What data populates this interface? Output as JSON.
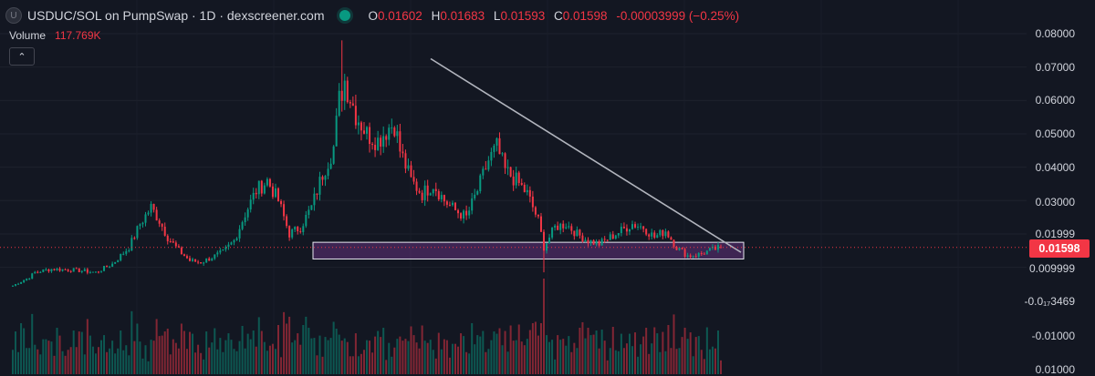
{
  "header": {
    "symbol_icon": "U",
    "title": "USDUC/SOL on PumpSwap · 1D · dexscreener.com",
    "status_color": "#089981",
    "ohlc": [
      {
        "k": "O",
        "v": "0.01602"
      },
      {
        "k": "H",
        "v": "0.01683"
      },
      {
        "k": "L",
        "v": "0.01593"
      },
      {
        "k": "C",
        "v": "0.01598"
      },
      {
        "k": "",
        "v": "-0.00003999 (−0.25%)"
      }
    ]
  },
  "volume": {
    "label": "Volume",
    "value": "117.769K"
  },
  "collapse_icon": "chevron-up-icon",
  "price_axis": {
    "ticks": [
      "0.08000",
      "0.07000",
      "0.06000",
      "0.05000",
      "0.04000",
      "0.03000",
      "0.01999",
      "0.009999",
      "-0.0₁₇3469",
      "-0.01000",
      "0.01000"
    ],
    "last_price": "0.01598"
  },
  "colors": {
    "up": "#089981",
    "down": "#f23645",
    "background": "#131722",
    "zone": "#8e3fb0",
    "trendline": "#b2b5be"
  },
  "chart_data": {
    "type": "candlestick",
    "interval": "1D",
    "last_price": 0.01598,
    "ylim": [
      -0.01,
      0.08
    ],
    "candles": [],
    "trendline": {
      "from": 0.0725,
      "to": 0.0145
    },
    "support_zone": [
      0.0125,
      0.0175
    ]
  }
}
